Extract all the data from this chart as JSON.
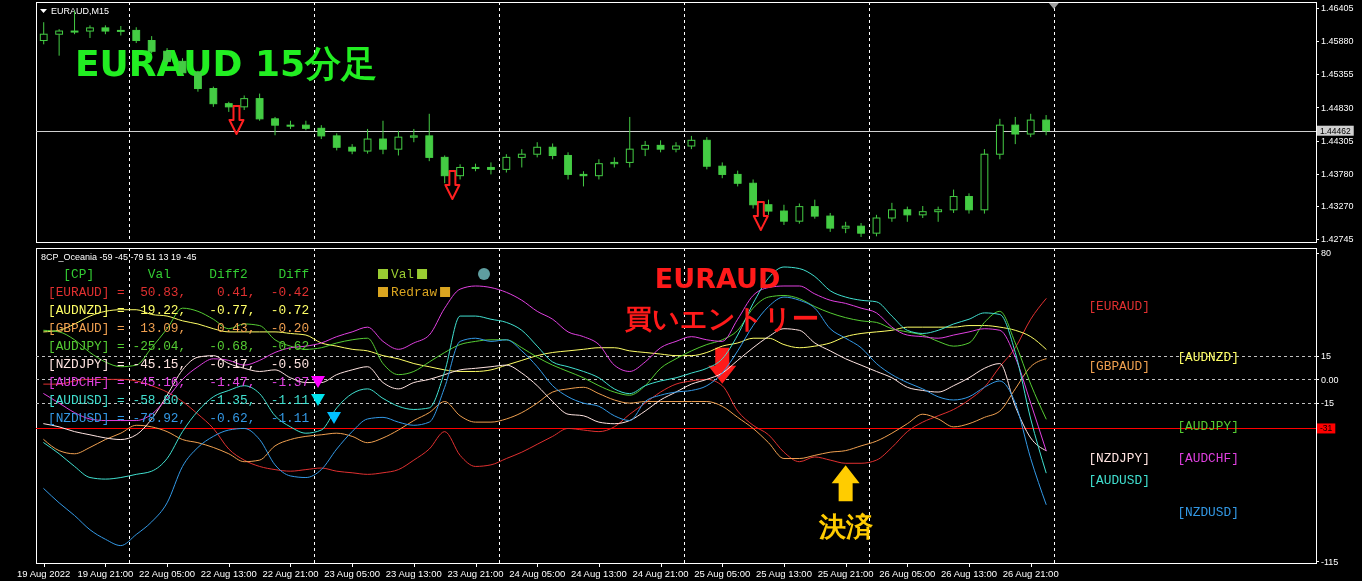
{
  "chart_data": [
    {
      "type": "candlestick",
      "title": "EURAUD 15分足",
      "subtitle": "EURAUD,M15",
      "categories": [
        null,
        null,
        null,
        null,
        null,
        null,
        null,
        null,
        null,
        null,
        null,
        null,
        null,
        null,
        null,
        null,
        null,
        null,
        null,
        null,
        null,
        null,
        null,
        null,
        null,
        null,
        null,
        null,
        null,
        null,
        null,
        null,
        null,
        null,
        null,
        null,
        null,
        null,
        null,
        null,
        null,
        null,
        null,
        null,
        null,
        null,
        null,
        null,
        null,
        null,
        null,
        null,
        null,
        null,
        null,
        null,
        null,
        null,
        null,
        null,
        null,
        null,
        null,
        null,
        null,
        null,
        null,
        null,
        null,
        null,
        null,
        null,
        null,
        null,
        null,
        null,
        null,
        null,
        null,
        null,
        null,
        null,
        null
      ],
      "ohlc": [
        [
          1.4589,
          1.4618,
          1.4583,
          1.4599
        ],
        [
          1.4599,
          1.4607,
          1.4565,
          1.4604
        ],
        [
          1.4604,
          1.4636,
          1.4599,
          1.4604
        ],
        [
          1.4604,
          1.4613,
          1.4593,
          1.4609
        ],
        [
          1.4609,
          1.4613,
          1.4599,
          1.4604
        ],
        [
          1.4604,
          1.4612,
          1.4597,
          1.4605
        ],
        [
          1.4605,
          1.461,
          1.4585,
          1.4589
        ],
        [
          1.4589,
          1.4596,
          1.4569,
          1.4572
        ],
        [
          1.4572,
          1.4577,
          1.4553,
          1.4556
        ],
        [
          1.4556,
          1.4561,
          1.4533,
          1.4538
        ],
        [
          1.4538,
          1.4541,
          1.4508,
          1.4513
        ],
        [
          1.4513,
          1.4516,
          1.4484,
          1.4489
        ],
        [
          1.4489,
          1.4492,
          1.4476,
          1.4484
        ],
        [
          1.4484,
          1.4502,
          1.4479,
          1.4497
        ],
        [
          1.4497,
          1.4505,
          1.4462,
          1.4465
        ],
        [
          1.4465,
          1.4468,
          1.4439,
          1.4455
        ],
        [
          1.4455,
          1.4462,
          1.4449,
          1.4455
        ],
        [
          1.4455,
          1.4462,
          1.4447,
          1.445
        ],
        [
          1.445,
          1.4455,
          1.4433,
          1.4438
        ],
        [
          1.4438,
          1.4442,
          1.4415,
          1.442
        ],
        [
          1.442,
          1.4425,
          1.4409,
          1.4414
        ],
        [
          1.4414,
          1.4449,
          1.441,
          1.4433
        ],
        [
          1.4433,
          1.4462,
          1.4409,
          1.4417
        ],
        [
          1.4417,
          1.4446,
          1.4407,
          1.4436
        ],
        [
          1.4436,
          1.4449,
          1.4428,
          1.4438
        ],
        [
          1.4438,
          1.4473,
          1.4398,
          1.4404
        ],
        [
          1.4404,
          1.4407,
          1.4363,
          1.4375
        ],
        [
          1.4375,
          1.4393,
          1.4369,
          1.4388
        ],
        [
          1.4388,
          1.4394,
          1.4382,
          1.4388
        ],
        [
          1.4388,
          1.4396,
          1.4377,
          1.4385
        ],
        [
          1.4385,
          1.4409,
          1.438,
          1.4404
        ],
        [
          1.4404,
          1.4417,
          1.4388,
          1.4409
        ],
        [
          1.4409,
          1.4428,
          1.4404,
          1.442
        ],
        [
          1.442,
          1.4426,
          1.4401,
          1.4407
        ],
        [
          1.4407,
          1.4412,
          1.4369,
          1.4377
        ],
        [
          1.4377,
          1.4382,
          1.4358,
          1.4375
        ],
        [
          1.4375,
          1.4401,
          1.4369,
          1.4394
        ],
        [
          1.4394,
          1.4404,
          1.4388,
          1.4396
        ],
        [
          1.4396,
          1.4468,
          1.4388,
          1.4417
        ],
        [
          1.4417,
          1.443,
          1.4406,
          1.4423
        ],
        [
          1.4423,
          1.4431,
          1.4412,
          1.4417
        ],
        [
          1.4417,
          1.4428,
          1.4412,
          1.4422
        ],
        [
          1.4422,
          1.4438,
          1.4417,
          1.4431
        ],
        [
          1.4431,
          1.4436,
          1.4385,
          1.439
        ],
        [
          1.439,
          1.4396,
          1.4371,
          1.4377
        ],
        [
          1.4377,
          1.4383,
          1.4358,
          1.4363
        ],
        [
          1.4363,
          1.4369,
          1.4323,
          1.4329
        ],
        [
          1.4329,
          1.4337,
          1.4313,
          1.4319
        ],
        [
          1.4319,
          1.4329,
          1.4297,
          1.4303
        ],
        [
          1.4303,
          1.4331,
          1.4299,
          1.4326
        ],
        [
          1.4326,
          1.4337,
          1.4307,
          1.4311
        ],
        [
          1.4311,
          1.4316,
          1.4286,
          1.4292
        ],
        [
          1.4292,
          1.4302,
          1.4284,
          1.4295
        ],
        [
          1.4295,
          1.43,
          1.4278,
          1.4284
        ],
        [
          1.4284,
          1.4313,
          1.4279,
          1.4308
        ],
        [
          1.4308,
          1.4332,
          1.4302,
          1.4321
        ],
        [
          1.4321,
          1.4326,
          1.4302,
          1.4313
        ],
        [
          1.4313,
          1.4327,
          1.4308,
          1.4318
        ],
        [
          1.4318,
          1.4326,
          1.4302,
          1.4321
        ],
        [
          1.4321,
          1.4353,
          1.4316,
          1.4342
        ],
        [
          1.4342,
          1.4347,
          1.4315,
          1.4321
        ],
        [
          1.4321,
          1.4417,
          1.4315,
          1.4409
        ],
        [
          1.4409,
          1.4465,
          1.4401,
          1.4455
        ],
        [
          1.4455,
          1.4468,
          1.4425,
          1.4441
        ],
        [
          1.4441,
          1.4473,
          1.4436,
          1.4463
        ],
        [
          1.4463,
          1.4471,
          1.4439,
          1.4446
        ],
        null,
        null,
        null,
        null,
        null,
        null,
        null,
        null,
        null,
        null,
        null,
        null,
        null,
        null,
        null,
        null,
        null
      ],
      "color": "#44cc44",
      "ylim": [
        1.427,
        1.465
      ],
      "yticks": [
        1.46405,
        {
          "value": 1.4588,
          "label": "1.45880"
        },
        1.45355,
        {
          "value": 1.4483,
          "label": "1.44830"
        },
        1.44305,
        {
          "value": 1.4378,
          "label": "1.43780"
        },
        {
          "value": 1.4327,
          "label": "1.43270"
        },
        1.42745
      ],
      "tick_labels": "y",
      "ref_lines": [
        {
          "axis": "y",
          "value": 1.44462,
          "label": "1.44462",
          "color": "#d0d0d0"
        }
      ]
    },
    {
      "type": "line",
      "title": "8CP_Oceania -59 -45 -79 51 13 19 -45",
      "categories": [
        "19 Aug 2022",
        null,
        null,
        null,
        "19 Aug 21:00",
        null,
        null,
        null,
        "22 Aug 05:00",
        null,
        null,
        null,
        "22 Aug 13:00",
        null,
        null,
        null,
        "22 Aug 21:00",
        null,
        null,
        null,
        "23 Aug 05:00",
        null,
        null,
        null,
        "23 Aug 13:00",
        null,
        null,
        null,
        "23 Aug 21:00",
        null,
        null,
        null,
        "24 Aug 05:00",
        null,
        null,
        null,
        "24 Aug 13:00",
        null,
        null,
        null,
        "24 Aug 21:00",
        null,
        null,
        null,
        "25 Aug 05:00",
        null,
        null,
        null,
        "25 Aug 13:00",
        null,
        null,
        null,
        "25 Aug 21:00",
        null,
        null,
        null,
        "26 Aug 05:00",
        null,
        null,
        null,
        "26 Aug 13:00",
        null,
        null,
        null,
        "26 Aug 21:00",
        null,
        null,
        null,
        null,
        null,
        null,
        null,
        null,
        null,
        null,
        null,
        null,
        null,
        null,
        null,
        null,
        null,
        null
      ],
      "series": [
        {
          "name": "[EURAUD]",
          "color": "#e03030",
          "values": [
            -3,
            -3,
            -1,
            0,
            0,
            0,
            -1,
            -4,
            -8,
            -14,
            -22,
            -31,
            -44,
            -51,
            -55,
            -57,
            -58,
            -57,
            -56,
            -58,
            -59,
            -60,
            -59,
            -57,
            -51,
            -44,
            -33,
            -48,
            -55,
            -54,
            -50,
            -46,
            -41,
            -36,
            -31,
            -32,
            -33,
            -30,
            -22,
            -15,
            -8,
            -3,
            -1,
            0,
            -4,
            -20,
            -29,
            -35,
            -46,
            -52,
            -49,
            -51,
            -53,
            -53,
            -51,
            -43,
            -33,
            -27,
            -23,
            -19,
            -13,
            -5,
            8,
            20,
            38,
            51,
            null,
            null,
            null,
            null,
            null,
            null,
            null,
            null,
            null,
            null,
            null,
            null,
            null,
            null,
            null,
            null,
            null
          ]
        },
        {
          "name": "[AUDNZD]",
          "color": "#ffff66",
          "values": [
            30,
            31,
            35,
            40,
            43,
            44,
            44,
            41,
            40,
            37,
            35,
            32,
            30,
            30,
            30,
            30,
            29,
            28,
            23,
            21,
            19,
            18,
            15,
            13,
            10,
            8,
            6,
            5,
            5,
            6,
            9,
            12,
            15,
            17,
            18,
            19,
            20,
            20,
            18,
            17,
            16,
            15,
            15,
            17,
            21,
            23,
            26,
            26,
            22,
            20,
            21,
            23,
            27,
            29,
            30,
            31,
            33,
            33,
            33,
            33,
            34,
            34,
            33,
            31,
            27,
            19,
            null,
            null,
            null,
            null,
            null,
            null,
            null,
            null,
            null,
            null,
            null,
            null,
            null,
            null,
            null,
            null,
            null
          ]
        },
        {
          "name": "[GBPAUD]",
          "color": "#f0a050",
          "values": [
            -38,
            -45,
            -47,
            -43,
            -38,
            -34,
            -29,
            -30,
            -33,
            -38,
            -40,
            -43,
            -47,
            -52,
            -51,
            -42,
            -38,
            -36,
            -35,
            -34,
            -36,
            -40,
            -37,
            -32,
            -26,
            -21,
            -14,
            -23,
            -27,
            -27,
            -25,
            -21,
            -15,
            -8,
            -6,
            -5,
            -9,
            -13,
            -15,
            -14,
            -14,
            -14,
            -14,
            -14,
            -17,
            -24,
            -31,
            -40,
            -50,
            -50,
            -48,
            -46,
            -45,
            -42,
            -39,
            -34,
            -28,
            -22,
            -25,
            -30,
            -28,
            -24,
            -20,
            -6,
            8,
            13,
            null,
            null,
            null,
            null,
            null,
            null,
            null,
            null,
            null,
            null,
            null,
            null,
            null,
            null,
            null,
            null,
            null
          ]
        },
        {
          "name": "[AUDJPY]",
          "color": "#55cc33",
          "values": [
            31,
            30,
            25,
            17,
            11,
            8,
            9,
            20,
            32,
            45,
            43,
            38,
            32,
            35,
            34,
            25,
            21,
            19,
            20,
            23,
            25,
            26,
            10,
            3,
            5,
            11,
            17,
            22,
            24,
            25,
            25,
            20,
            14,
            9,
            5,
            1,
            -4,
            -8,
            -10,
            -4,
            7,
            13,
            18,
            22,
            25,
            31,
            45,
            52,
            53,
            51,
            46,
            42,
            39,
            37,
            36,
            32,
            30,
            28,
            24,
            21,
            23,
            36,
            43,
            23,
            -3,
            -25,
            null,
            null,
            null,
            null,
            null,
            null,
            null,
            null,
            null,
            null,
            null,
            null,
            null,
            null,
            null,
            null,
            null
          ]
        },
        {
          "name": "[NZDJPY]",
          "color": "#ffe4e1",
          "values": [
            -28,
            -30,
            -33,
            -35,
            -37,
            -38,
            -35,
            -25,
            -10,
            6,
            14,
            15,
            10,
            7,
            5,
            6,
            1,
            -2,
            -2,
            3,
            6,
            8,
            -2,
            -6,
            -2,
            0,
            3,
            6,
            7,
            8,
            9,
            4,
            -4,
            -14,
            -22,
            -23,
            -27,
            -28,
            -26,
            -20,
            -13,
            -8,
            -3,
            0,
            4,
            12,
            20,
            27,
            32,
            31,
            23,
            18,
            13,
            9,
            5,
            1,
            -5,
            -7,
            -8,
            -4,
            1,
            7,
            10,
            -17,
            -37,
            -45,
            null,
            null,
            null,
            null,
            null,
            null,
            null,
            null,
            null,
            null,
            null,
            null,
            null,
            null,
            null,
            null,
            null
          ]
        },
        {
          "name": "[AUDCHF]",
          "color": "#e040e0",
          "values": [
            -9,
            -15,
            -21,
            -25,
            -26,
            -26,
            -26,
            -22,
            -12,
            0,
            8,
            13,
            12,
            9,
            12,
            17,
            20,
            21,
            23,
            27,
            30,
            33,
            24,
            19,
            23,
            28,
            45,
            57,
            59,
            58,
            55,
            50,
            43,
            38,
            30,
            27,
            22,
            9,
            5,
            11,
            20,
            24,
            27,
            25,
            24,
            38,
            53,
            58,
            59,
            59,
            54,
            50,
            48,
            45,
            42,
            33,
            28,
            27,
            26,
            28,
            30,
            32,
            31,
            14,
            -15,
            -45,
            null,
            null,
            null,
            null,
            null,
            null,
            null,
            null,
            null,
            null,
            null,
            null,
            null,
            null,
            null,
            null,
            null
          ]
        },
        {
          "name": "[AUDUSD]",
          "color": "#40e0d0",
          "values": [
            -40,
            -47,
            -55,
            -62,
            -63,
            -62,
            -60,
            -58,
            -50,
            -33,
            -20,
            -11,
            -7,
            -4,
            -9,
            -23,
            -30,
            -34,
            -32,
            -18,
            -9,
            -6,
            -12,
            -17,
            -19,
            -18,
            5,
            40,
            40,
            38,
            36,
            31,
            21,
            11,
            8,
            5,
            1,
            -6,
            -9,
            -4,
            -1,
            1,
            4,
            7,
            13,
            28,
            48,
            64,
            71,
            70,
            65,
            56,
            52,
            50,
            49,
            40,
            31,
            29,
            31,
            35,
            38,
            42,
            41,
            17,
            -25,
            -59,
            null,
            null,
            null,
            null,
            null,
            null,
            null,
            null,
            null,
            null,
            null,
            null,
            null,
            null,
            null,
            null,
            null
          ]
        },
        {
          "name": "[NZDUSD]",
          "color": "#3399e6",
          "values": [
            -69,
            -78,
            -86,
            -95,
            -101,
            -105,
            -98,
            -90,
            -78,
            -55,
            -43,
            -36,
            -32,
            -31,
            -38,
            -54,
            -61,
            -62,
            -57,
            -44,
            -33,
            -25,
            -24,
            -27,
            -29,
            -27,
            -5,
            24,
            26,
            24,
            25,
            18,
            8,
            -4,
            -11,
            -15,
            -17,
            -23,
            -26,
            -14,
            -10,
            -8,
            -7,
            -4,
            4,
            18,
            34,
            46,
            52,
            50,
            45,
            32,
            26,
            20,
            10,
            3,
            -2,
            -6,
            -11,
            -13,
            -11,
            -5,
            -1,
            -15,
            -50,
            -79,
            null,
            null,
            null,
            null,
            null,
            null,
            null,
            null,
            null,
            null,
            null,
            null,
            null,
            null,
            null,
            null,
            null
          ]
        }
      ],
      "ylim": [
        -116,
        83
      ],
      "yticks": [
        80,
        15,
        {
          "value": 0,
          "label": "0.00"
        },
        -15,
        -115
      ],
      "ref_lines": [
        {
          "axis": "y",
          "value": 15,
          "line_style": "dashed",
          "color": "#c0c0c0"
        },
        {
          "axis": "y",
          "value": 0,
          "line_style": "dashed",
          "color": "#c0c0c0"
        },
        {
          "axis": "y",
          "value": -15,
          "line_style": "dashed",
          "color": "#c0c0c0"
        },
        {
          "axis": "y",
          "value": -31,
          "label": "-31",
          "color": "#ff0000"
        }
      ],
      "annotations": [
        "  [CP]       Val     Diff2    Diff",
        "[EURAUD] =  50.83,    0.41,  -0.42",
        "[AUDNZD] =  19.22,   -0.77,  -0.72",
        "[GBPAUD] =  13.09,    0.43,  -0.20",
        "[AUDJPY] = -25.04,   -0.68,  -0.62",
        "[NZDJPY] = -45.15,   -0.17,  -0.50",
        "[AUDCHF] = -45.16,   -1.47,  -1.37",
        "[AUDUSD] = -58.80,   -1.35,  -1.11",
        "[NZDUSD] = -78.92,   -0.62,  -1.11",
        "Val",
        "Redraw",
        {
          "text": "EURAUD\n買いエントリー",
          "x": "25 Aug 05:00",
          "y": -4
        },
        {
          "text": "決済",
          "x": "25 Aug 21:00",
          "y": -53
        }
      ]
    }
  ]
}
